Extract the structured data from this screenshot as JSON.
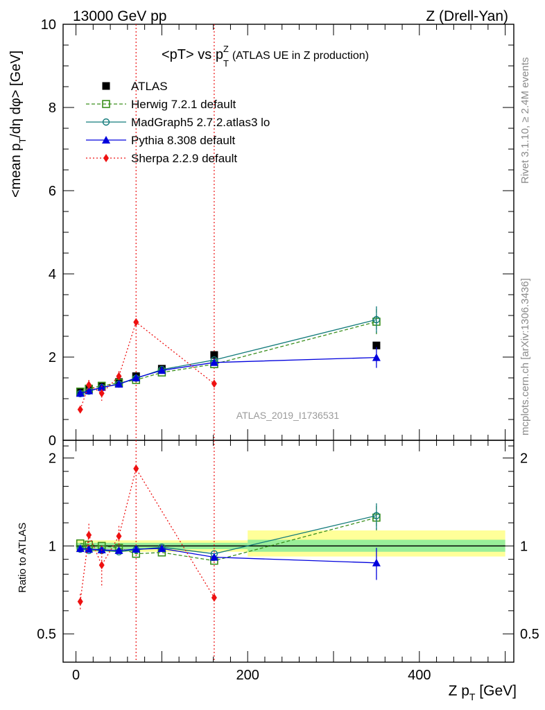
{
  "header": {
    "left": "13000 GeV pp",
    "right": "Z (Drell-Yan)"
  },
  "title_main": "<pT> vs p",
  "title_sup": "Z",
  "title_sub": "T",
  "title_tail": "(ATLAS UE in Z production)",
  "watermark": "ATLAS_2019_I1736531",
  "side_right_top": "Rivet 3.1.10, ≥ 2.4M events",
  "side_right_bottom": "mcplots.cern.ch [arXiv:1306.3436]",
  "ylabel_main": {
    "p1": "<mean p",
    "s1": "T",
    "p2": "/dη dφ> [GeV]"
  },
  "ylabel_ratio": "Ratio to ATLAS",
  "xlabel": {
    "p1": "Z p",
    "s1": "T",
    "p2": " [GeV]"
  },
  "colors": {
    "ATLAS": "#000000",
    "Herwig": "#3a8f1c",
    "MadGraph": "#117a7a",
    "Pythia": "#0000dd",
    "Sherpa": "#ee1111",
    "band_outer": "#ffff99",
    "band_inner": "#99ee99"
  },
  "chart_data": [
    {
      "type": "scatter",
      "panel": "main",
      "xlim": [
        -15,
        510
      ],
      "ylim": [
        0,
        10
      ],
      "yticks": [
        0,
        2,
        4,
        6,
        8,
        10
      ],
      "x": [
        5,
        15,
        30,
        50,
        70,
        100,
        161,
        350
      ],
      "series": [
        {
          "name": "ATLAS",
          "key": "ATLAS",
          "marker": "square",
          "values": [
            1.15,
            1.22,
            1.31,
            1.4,
            1.54,
            1.72,
            2.05,
            2.28
          ]
        },
        {
          "name": "Herwig 7.2.1 default",
          "key": "Herwig",
          "marker": "open-square",
          "dash": "5,3",
          "values": [
            1.17,
            1.24,
            1.31,
            1.38,
            1.45,
            1.63,
            1.83,
            2.85
          ],
          "errors": [
            0,
            0,
            0,
            0,
            0,
            0,
            0,
            0.3
          ]
        },
        {
          "name": "MadGraph5 2.7.2.atlas3 lo",
          "key": "MadGraph",
          "marker": "open-circle",
          "dash": "",
          "values": [
            1.12,
            1.18,
            1.27,
            1.35,
            1.49,
            1.7,
            1.93,
            2.9
          ],
          "errors": [
            0,
            0,
            0,
            0,
            0,
            0,
            0,
            0.32
          ]
        },
        {
          "name": "Pythia 8.308 default",
          "key": "Pythia",
          "marker": "triangle",
          "dash": "",
          "values": [
            1.13,
            1.19,
            1.27,
            1.35,
            1.5,
            1.68,
            1.87,
            1.99
          ],
          "errors": [
            0,
            0,
            0,
            0,
            0,
            0,
            0,
            0.25
          ]
        },
        {
          "name": "Sherpa 2.2.9 default",
          "key": "Sherpa",
          "marker": "diamond",
          "dash": "2,3",
          "values": [
            0.74,
            1.33,
            1.13,
            1.54,
            2.84,
            null,
            1.36,
            null
          ],
          "errors": [
            0.05,
            0.12,
            0.18,
            0.12,
            0,
            0,
            0,
            0
          ]
        }
      ],
      "vlines": [
        70,
        161
      ]
    },
    {
      "type": "scatter",
      "panel": "ratio",
      "ylabel": "Ratio to ATLAS",
      "xlabel": "Z pT [GeV]",
      "xlim": [
        -15,
        510
      ],
      "ylim": [
        0.4,
        2.3
      ],
      "yticks": [
        0.5,
        1,
        2
      ],
      "xticks": [
        0,
        200,
        400
      ],
      "log_y": true,
      "bands": [
        {
          "x0": 0,
          "x1": 200,
          "outer": [
            0.955,
            1.045
          ],
          "inner": [
            0.975,
            1.025
          ]
        },
        {
          "x0": 200,
          "x1": 500,
          "outer": [
            0.92,
            1.13
          ],
          "inner": [
            0.955,
            1.05
          ]
        }
      ],
      "x": [
        5,
        15,
        30,
        50,
        70,
        100,
        161,
        350
      ],
      "series": [
        {
          "name": "Herwig 7.2.1 default",
          "key": "Herwig",
          "marker": "open-square",
          "dash": "5,3",
          "values": [
            1.02,
            1.01,
            1.0,
            0.985,
            0.94,
            0.95,
            0.89,
            1.25
          ],
          "errors": [
            0,
            0,
            0,
            0,
            0,
            0,
            0,
            0.12
          ]
        },
        {
          "name": "MadGraph5 2.7.2.atlas3 lo",
          "key": "MadGraph",
          "marker": "open-circle",
          "dash": "",
          "values": [
            0.975,
            0.965,
            0.965,
            0.955,
            0.97,
            0.99,
            0.94,
            1.27
          ],
          "errors": [
            0,
            0,
            0,
            0,
            0,
            0,
            0,
            0.13
          ]
        },
        {
          "name": "Pythia 8.308 default",
          "key": "Pythia",
          "marker": "triangle",
          "dash": "",
          "values": [
            0.98,
            0.975,
            0.97,
            0.965,
            0.975,
            0.98,
            0.915,
            0.875
          ],
          "errors": [
            0,
            0,
            0,
            0,
            0,
            0,
            0,
            0.11
          ]
        },
        {
          "name": "Sherpa 2.2.9 default",
          "key": "Sherpa",
          "marker": "diamond",
          "dash": "2,3",
          "values": [
            0.645,
            1.09,
            0.86,
            1.08,
            1.84,
            null,
            0.665,
            null
          ],
          "errors": [
            0.04,
            0.1,
            0.14,
            0.09,
            0,
            0,
            0,
            0
          ]
        }
      ],
      "vlines": [
        70,
        161
      ]
    }
  ]
}
